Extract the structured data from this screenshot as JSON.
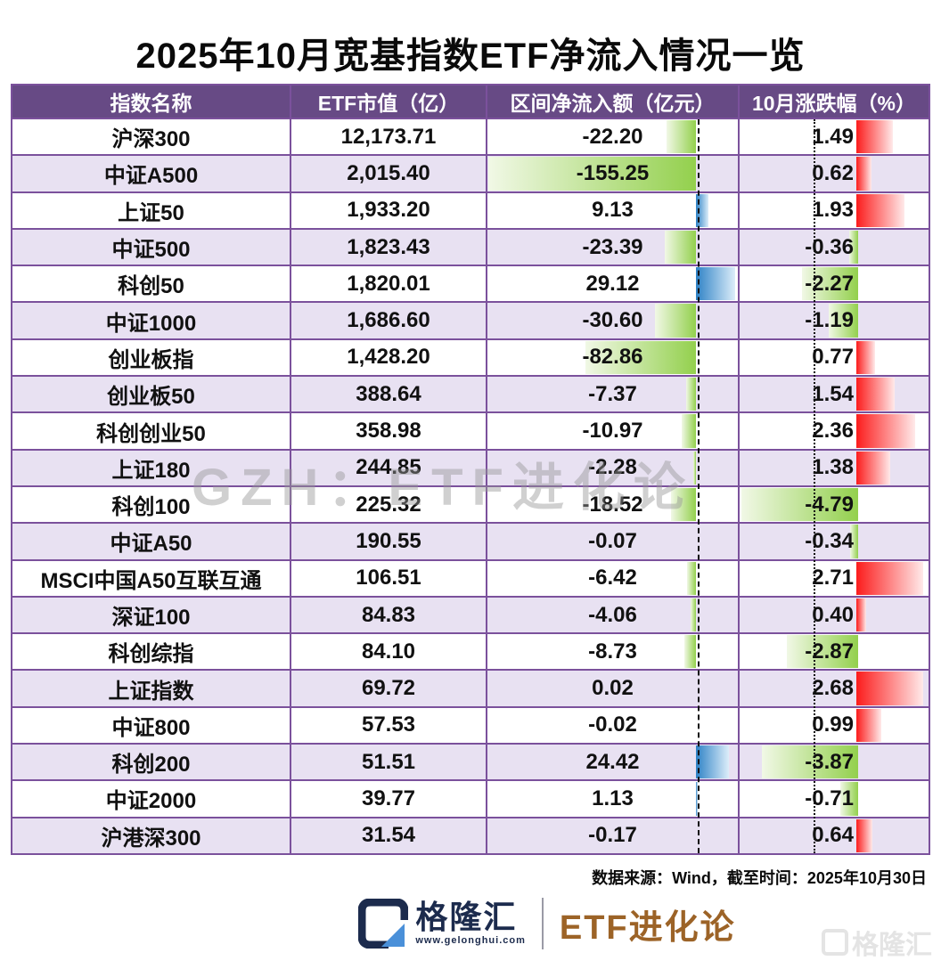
{
  "title": "2025年10月宽基指数ETF净流入情况一览",
  "table": {
    "headers": [
      "指数名称",
      "ETF市值（亿）",
      "区间净流入额（亿元）",
      "10月涨跌幅（%）"
    ],
    "rows": [
      {
        "name": "沪深300",
        "market_cap": "12,173.71",
        "inflow": "-22.20",
        "inflow_value": -22.2,
        "change": "1.49",
        "change_value": 1.49
      },
      {
        "name": "中证A500",
        "market_cap": "2,015.40",
        "inflow": "-155.25",
        "inflow_value": -155.25,
        "change": "0.62",
        "change_value": 0.62
      },
      {
        "name": "上证50",
        "market_cap": "1,933.20",
        "inflow": "9.13",
        "inflow_value": 9.13,
        "change": "1.93",
        "change_value": 1.93
      },
      {
        "name": "中证500",
        "market_cap": "1,823.43",
        "inflow": "-23.39",
        "inflow_value": -23.39,
        "change": "-0.36",
        "change_value": -0.36
      },
      {
        "name": "科创50",
        "market_cap": "1,820.01",
        "inflow": "29.12",
        "inflow_value": 29.12,
        "change": "-2.27",
        "change_value": -2.27
      },
      {
        "name": "中证1000",
        "market_cap": "1,686.60",
        "inflow": "-30.60",
        "inflow_value": -30.6,
        "change": "-1.19",
        "change_value": -1.19
      },
      {
        "name": "创业板指",
        "market_cap": "1,428.20",
        "inflow": "-82.86",
        "inflow_value": -82.86,
        "change": "0.77",
        "change_value": 0.77
      },
      {
        "name": "创业板50",
        "market_cap": "388.64",
        "inflow": "-7.37",
        "inflow_value": -7.37,
        "change": "1.54",
        "change_value": 1.54
      },
      {
        "name": "科创创业50",
        "market_cap": "358.98",
        "inflow": "-10.97",
        "inflow_value": -10.97,
        "change": "2.36",
        "change_value": 2.36
      },
      {
        "name": "上证180",
        "market_cap": "244.85",
        "inflow": "-2.28",
        "inflow_value": -2.28,
        "change": "1.38",
        "change_value": 1.38
      },
      {
        "name": "科创100",
        "market_cap": "225.32",
        "inflow": "-18.52",
        "inflow_value": -18.52,
        "change": "-4.79",
        "change_value": -4.79
      },
      {
        "name": "中证A50",
        "market_cap": "190.55",
        "inflow": "-0.07",
        "inflow_value": -0.07,
        "change": "-0.34",
        "change_value": -0.34
      },
      {
        "name": "MSCI中国A50互联互通",
        "market_cap": "106.51",
        "inflow": "-6.42",
        "inflow_value": -6.42,
        "change": "2.71",
        "change_value": 2.71
      },
      {
        "name": "深证100",
        "market_cap": "84.83",
        "inflow": "-4.06",
        "inflow_value": -4.06,
        "change": "0.40",
        "change_value": 0.4
      },
      {
        "name": "科创综指",
        "market_cap": "84.10",
        "inflow": "-8.73",
        "inflow_value": -8.73,
        "change": "-2.87",
        "change_value": -2.87
      },
      {
        "name": "上证指数",
        "market_cap": "69.72",
        "inflow": "0.02",
        "inflow_value": 0.02,
        "change": "2.68",
        "change_value": 2.68
      },
      {
        "name": "中证800",
        "market_cap": "57.53",
        "inflow": "-0.02",
        "inflow_value": -0.02,
        "change": "0.99",
        "change_value": 0.99
      },
      {
        "name": "科创200",
        "market_cap": "51.51",
        "inflow": "24.42",
        "inflow_value": 24.42,
        "change": "-3.87",
        "change_value": -3.87
      },
      {
        "name": "中证2000",
        "market_cap": "39.77",
        "inflow": "1.13",
        "inflow_value": 1.13,
        "change": "-0.71",
        "change_value": -0.71
      },
      {
        "name": "沪港深300",
        "market_cap": "31.54",
        "inflow": "-0.17",
        "inflow_value": -0.17,
        "change": "0.64",
        "change_value": 0.64
      }
    ]
  },
  "chart_data": {
    "type": "table",
    "title": "2025年10月宽基指数ETF净流入情况一览",
    "columns": [
      "指数名称",
      "ETF市值（亿）",
      "区间净流入额（亿元）",
      "10月涨跌幅（%）"
    ],
    "bar_columns": {
      "区间净流入额（亿元）": {
        "type": "bar",
        "negative_color": "green",
        "positive_color": "blue",
        "range": [
          -155.25,
          29.12
        ]
      },
      "10月涨跌幅（%）": {
        "type": "bar",
        "negative_color": "green",
        "positive_color": "red",
        "range": [
          -4.79,
          2.71
        ]
      }
    },
    "categories": [
      "沪深300",
      "中证A500",
      "上证50",
      "中证500",
      "科创50",
      "中证1000",
      "创业板指",
      "创业板50",
      "科创创业50",
      "上证180",
      "科创100",
      "中证A50",
      "MSCI中国A50互联互通",
      "深证100",
      "科创综指",
      "上证指数",
      "中证800",
      "科创200",
      "中证2000",
      "沪港深300"
    ],
    "series": [
      {
        "name": "ETF市值（亿）",
        "values": [
          12173.71,
          2015.4,
          1933.2,
          1823.43,
          1820.01,
          1686.6,
          1428.2,
          388.64,
          358.98,
          244.85,
          225.32,
          190.55,
          106.51,
          84.83,
          84.1,
          69.72,
          57.53,
          51.51,
          39.77,
          31.54
        ]
      },
      {
        "name": "区间净流入额（亿元）",
        "values": [
          -22.2,
          -155.25,
          9.13,
          -23.39,
          29.12,
          -30.6,
          -82.86,
          -7.37,
          -10.97,
          -2.28,
          -18.52,
          -0.07,
          -6.42,
          -4.06,
          -8.73,
          0.02,
          -0.02,
          24.42,
          1.13,
          -0.17
        ]
      },
      {
        "name": "10月涨跌幅（%）",
        "values": [
          1.49,
          0.62,
          1.93,
          -0.36,
          -2.27,
          -1.19,
          0.77,
          1.54,
          2.36,
          1.38,
          -4.79,
          -0.34,
          2.71,
          0.4,
          -2.87,
          2.68,
          0.99,
          -3.87,
          -0.71,
          0.64
        ]
      }
    ]
  },
  "watermark": "GZH：ETF进化论",
  "footer": {
    "source": "数据来源：Wind，截至时间：2025年10月30日"
  },
  "branding": {
    "logo_name": "格隆汇",
    "logo_url": "www.gelonghui.com",
    "brand_right": "ETF进化论",
    "corner_watermark": "格隆汇"
  },
  "colors": {
    "header_bg": "#674a85",
    "border": "#7b519c",
    "row_alt": "#e8e1f2",
    "green_solid": "#93d04d",
    "green_light": "#f1f8e6",
    "blue_solid": "#2e82c6",
    "blue_light": "#dcedf9",
    "red_solid": "#fc1c1c",
    "red_light": "#ffeaea",
    "navy": "#1c2b4d",
    "brown": "#9c6327"
  }
}
